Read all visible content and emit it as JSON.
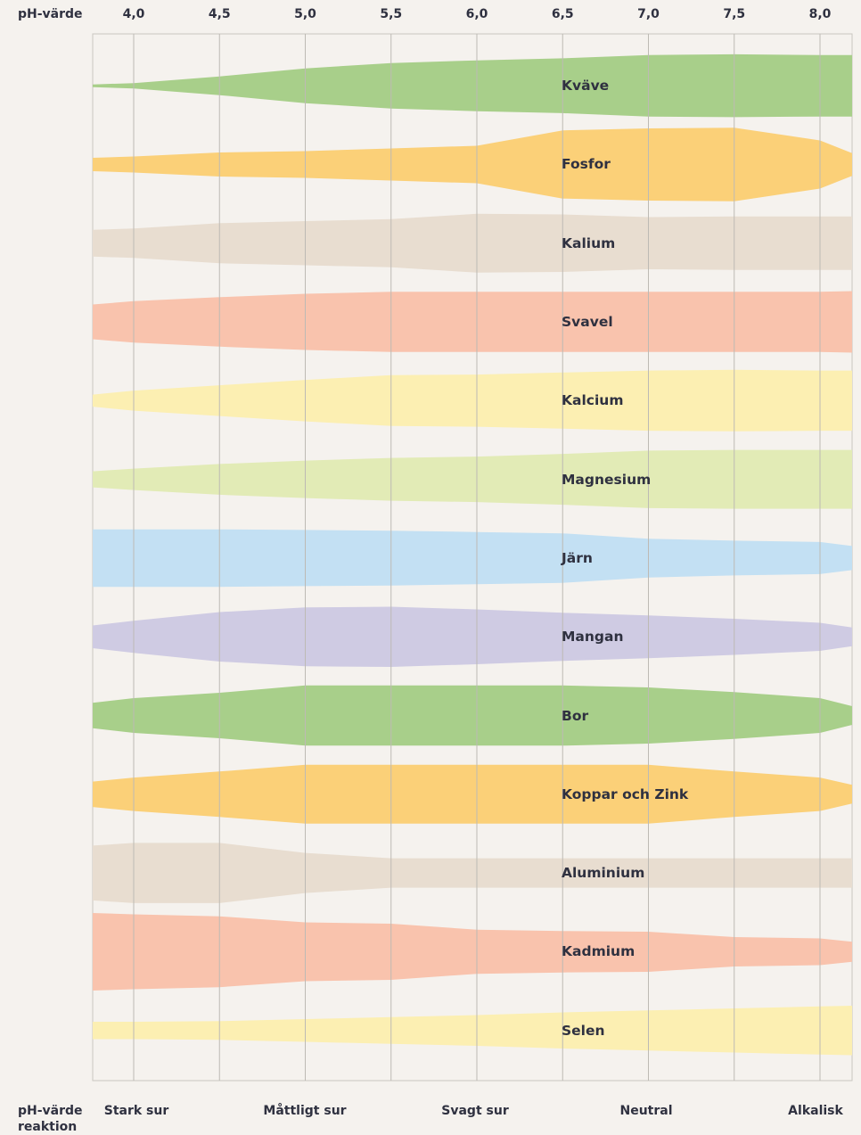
{
  "chart_data": {
    "type": "area",
    "x_label": "pH-värde",
    "reaction_label_line1": "pH-värde",
    "reaction_label_line2": "reaktion",
    "x_ticks": [
      "4,0",
      "4,5",
      "5,0",
      "5,5",
      "6,0",
      "6,5",
      "7,0",
      "7,5",
      "8,0"
    ],
    "reactions": [
      {
        "label": "Stark sur",
        "ph": 4.0
      },
      {
        "label": "Måttligt sur",
        "ph": 5.0
      },
      {
        "label": "Svagt sur",
        "ph": 6.0
      },
      {
        "label": "Neutral",
        "ph": 7.0
      },
      {
        "label": "Alkalisk",
        "ph": 8.0
      }
    ],
    "ph_points": [
      3.75,
      4.0,
      4.5,
      5.0,
      5.5,
      6.0,
      6.5,
      7.0,
      7.5,
      8.0,
      8.2
    ],
    "series": [
      {
        "name": "Kväve",
        "color": "#a8cf8a",
        "availability": [
          0.2,
          0.4,
          1.4,
          2.6,
          3.4,
          3.8,
          4.1,
          4.6,
          4.7,
          4.6,
          4.6
        ]
      },
      {
        "name": "Fosfor",
        "color": "#fbd078",
        "availability": [
          1.0,
          1.2,
          1.8,
          2.0,
          2.4,
          2.8,
          5.1,
          5.4,
          5.5,
          3.6,
          1.7
        ]
      },
      {
        "name": "Kalium",
        "color": "#e8ddd0",
        "availability": [
          2.0,
          2.2,
          3.0,
          3.3,
          3.6,
          4.4,
          4.3,
          3.9,
          4.0,
          4.0,
          4.0
        ]
      },
      {
        "name": "Svavel",
        "color": "#f9c3ad",
        "availability": [
          2.6,
          3.1,
          3.7,
          4.2,
          4.5,
          4.5,
          4.5,
          4.5,
          4.5,
          4.5,
          4.6
        ]
      },
      {
        "name": "Kalcium",
        "color": "#fcefb2",
        "availability": [
          0.9,
          1.5,
          2.3,
          3.1,
          3.8,
          3.9,
          4.2,
          4.5,
          4.6,
          4.5,
          4.5
        ]
      },
      {
        "name": "Magnesium",
        "color": "#e2ebb6",
        "availability": [
          1.2,
          1.6,
          2.3,
          2.8,
          3.2,
          3.4,
          3.8,
          4.3,
          4.4,
          4.4,
          4.4
        ]
      },
      {
        "name": "Järn",
        "color": "#c3e0f3",
        "availability": [
          4.3,
          4.3,
          4.3,
          4.2,
          4.1,
          3.9,
          3.7,
          2.9,
          2.6,
          2.4,
          1.8
        ]
      },
      {
        "name": "Mangan",
        "color": "#cfcbe3",
        "availability": [
          1.7,
          2.4,
          3.7,
          4.4,
          4.5,
          4.1,
          3.6,
          3.2,
          2.7,
          2.1,
          1.4
        ]
      },
      {
        "name": "Bor",
        "color": "#a8cf8a",
        "availability": [
          1.9,
          2.6,
          3.4,
          4.5,
          4.5,
          4.5,
          4.5,
          4.2,
          3.5,
          2.6,
          1.4
        ]
      },
      {
        "name": "Koppar och Zink",
        "color": "#fbd078",
        "availability": [
          1.9,
          2.5,
          3.4,
          4.4,
          4.4,
          4.4,
          4.4,
          4.4,
          3.4,
          2.5,
          1.4
        ]
      },
      {
        "name": "Aluminium",
        "color": "#e8ddd0",
        "availability": [
          4.1,
          4.5,
          4.5,
          3.0,
          2.2,
          2.2,
          2.2,
          2.2,
          2.2,
          2.2,
          2.2
        ]
      },
      {
        "name": "Kadmium",
        "color": "#f9c3ad",
        "availability": [
          5.8,
          5.6,
          5.3,
          4.4,
          4.2,
          3.3,
          3.1,
          3.0,
          2.2,
          2.0,
          1.5
        ]
      },
      {
        "name": "Selen",
        "color": "#fcefb2",
        "availability": [
          1.3,
          1.3,
          1.4,
          1.7,
          2.0,
          2.3,
          2.7,
          3.0,
          3.3,
          3.6,
          3.7
        ]
      }
    ]
  }
}
